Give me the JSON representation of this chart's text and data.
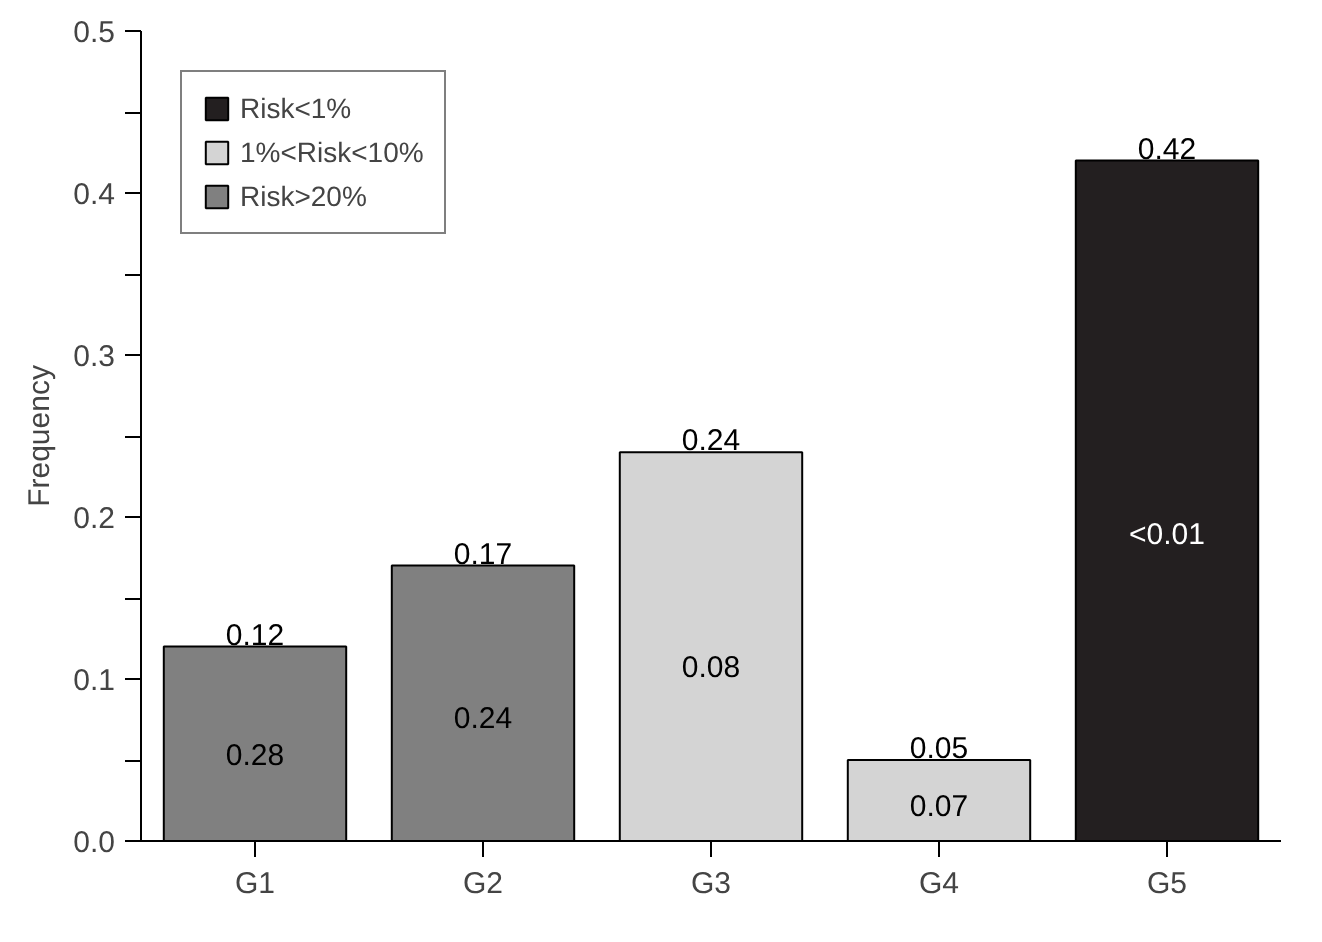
{
  "chart_data": {
    "type": "bar",
    "ylabel": "Frequency",
    "categories": [
      "G1",
      "G2",
      "G3",
      "G4",
      "G5"
    ],
    "series": [
      {
        "name": "Risk<1%",
        "color": "#231f20",
        "values": [
          null,
          null,
          null,
          null,
          0.42
        ]
      },
      {
        "name": "1%<Risk<10%",
        "color": "#d4d4d4",
        "values": [
          null,
          null,
          0.24,
          0.05,
          null
        ]
      },
      {
        "name": "Risk>20%",
        "color": "#808080",
        "values": [
          0.12,
          0.17,
          null,
          null,
          null
        ]
      }
    ],
    "data_labels": true,
    "ylim": [
      0,
      0.5
    ],
    "yticks": [
      {
        "value": 0,
        "label": "0.0"
      },
      {
        "value": 0.05,
        "label": null
      },
      {
        "value": 0.1,
        "label": "0.1"
      },
      {
        "value": 0.15,
        "label": null
      },
      {
        "value": 0.2,
        "label": "0.2"
      },
      {
        "value": 0.25,
        "label": null
      },
      {
        "value": 0.3,
        "label": "0.3"
      },
      {
        "value": 0.35,
        "label": null
      },
      {
        "value": 0.4,
        "label": "0.4"
      },
      {
        "value": 0.45,
        "label": null
      },
      {
        "value": 0.5,
        "label": "0.5"
      }
    ],
    "annotations": [
      "0.28",
      "0.24",
      "0.08",
      "0.07",
      "<0.01"
    ],
    "grid": false,
    "legend": "top left"
  }
}
